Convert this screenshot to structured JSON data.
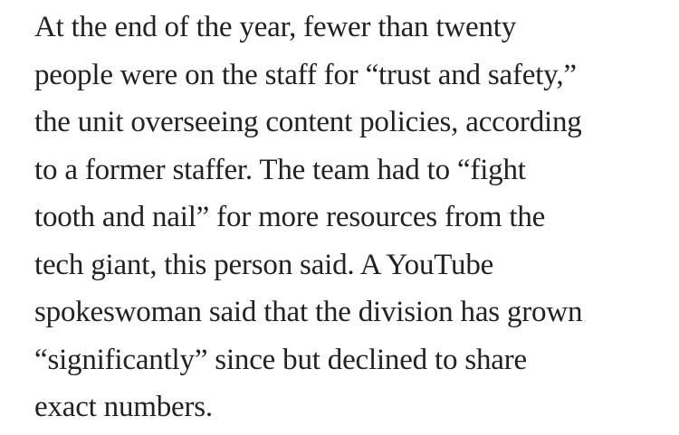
{
  "article": {
    "lines": [
      "At the end of the year, fewer than twenty",
      "people were on the staff for “trust and safety,”",
      "the unit overseeing content policies, according",
      "to a former staffer. The team had to “fight",
      "tooth and nail” for more resources from the",
      "tech giant, this person said. A YouTube",
      "spokeswoman said that the division has grown",
      "“significantly” since but declined to share",
      "exact numbers."
    ]
  }
}
